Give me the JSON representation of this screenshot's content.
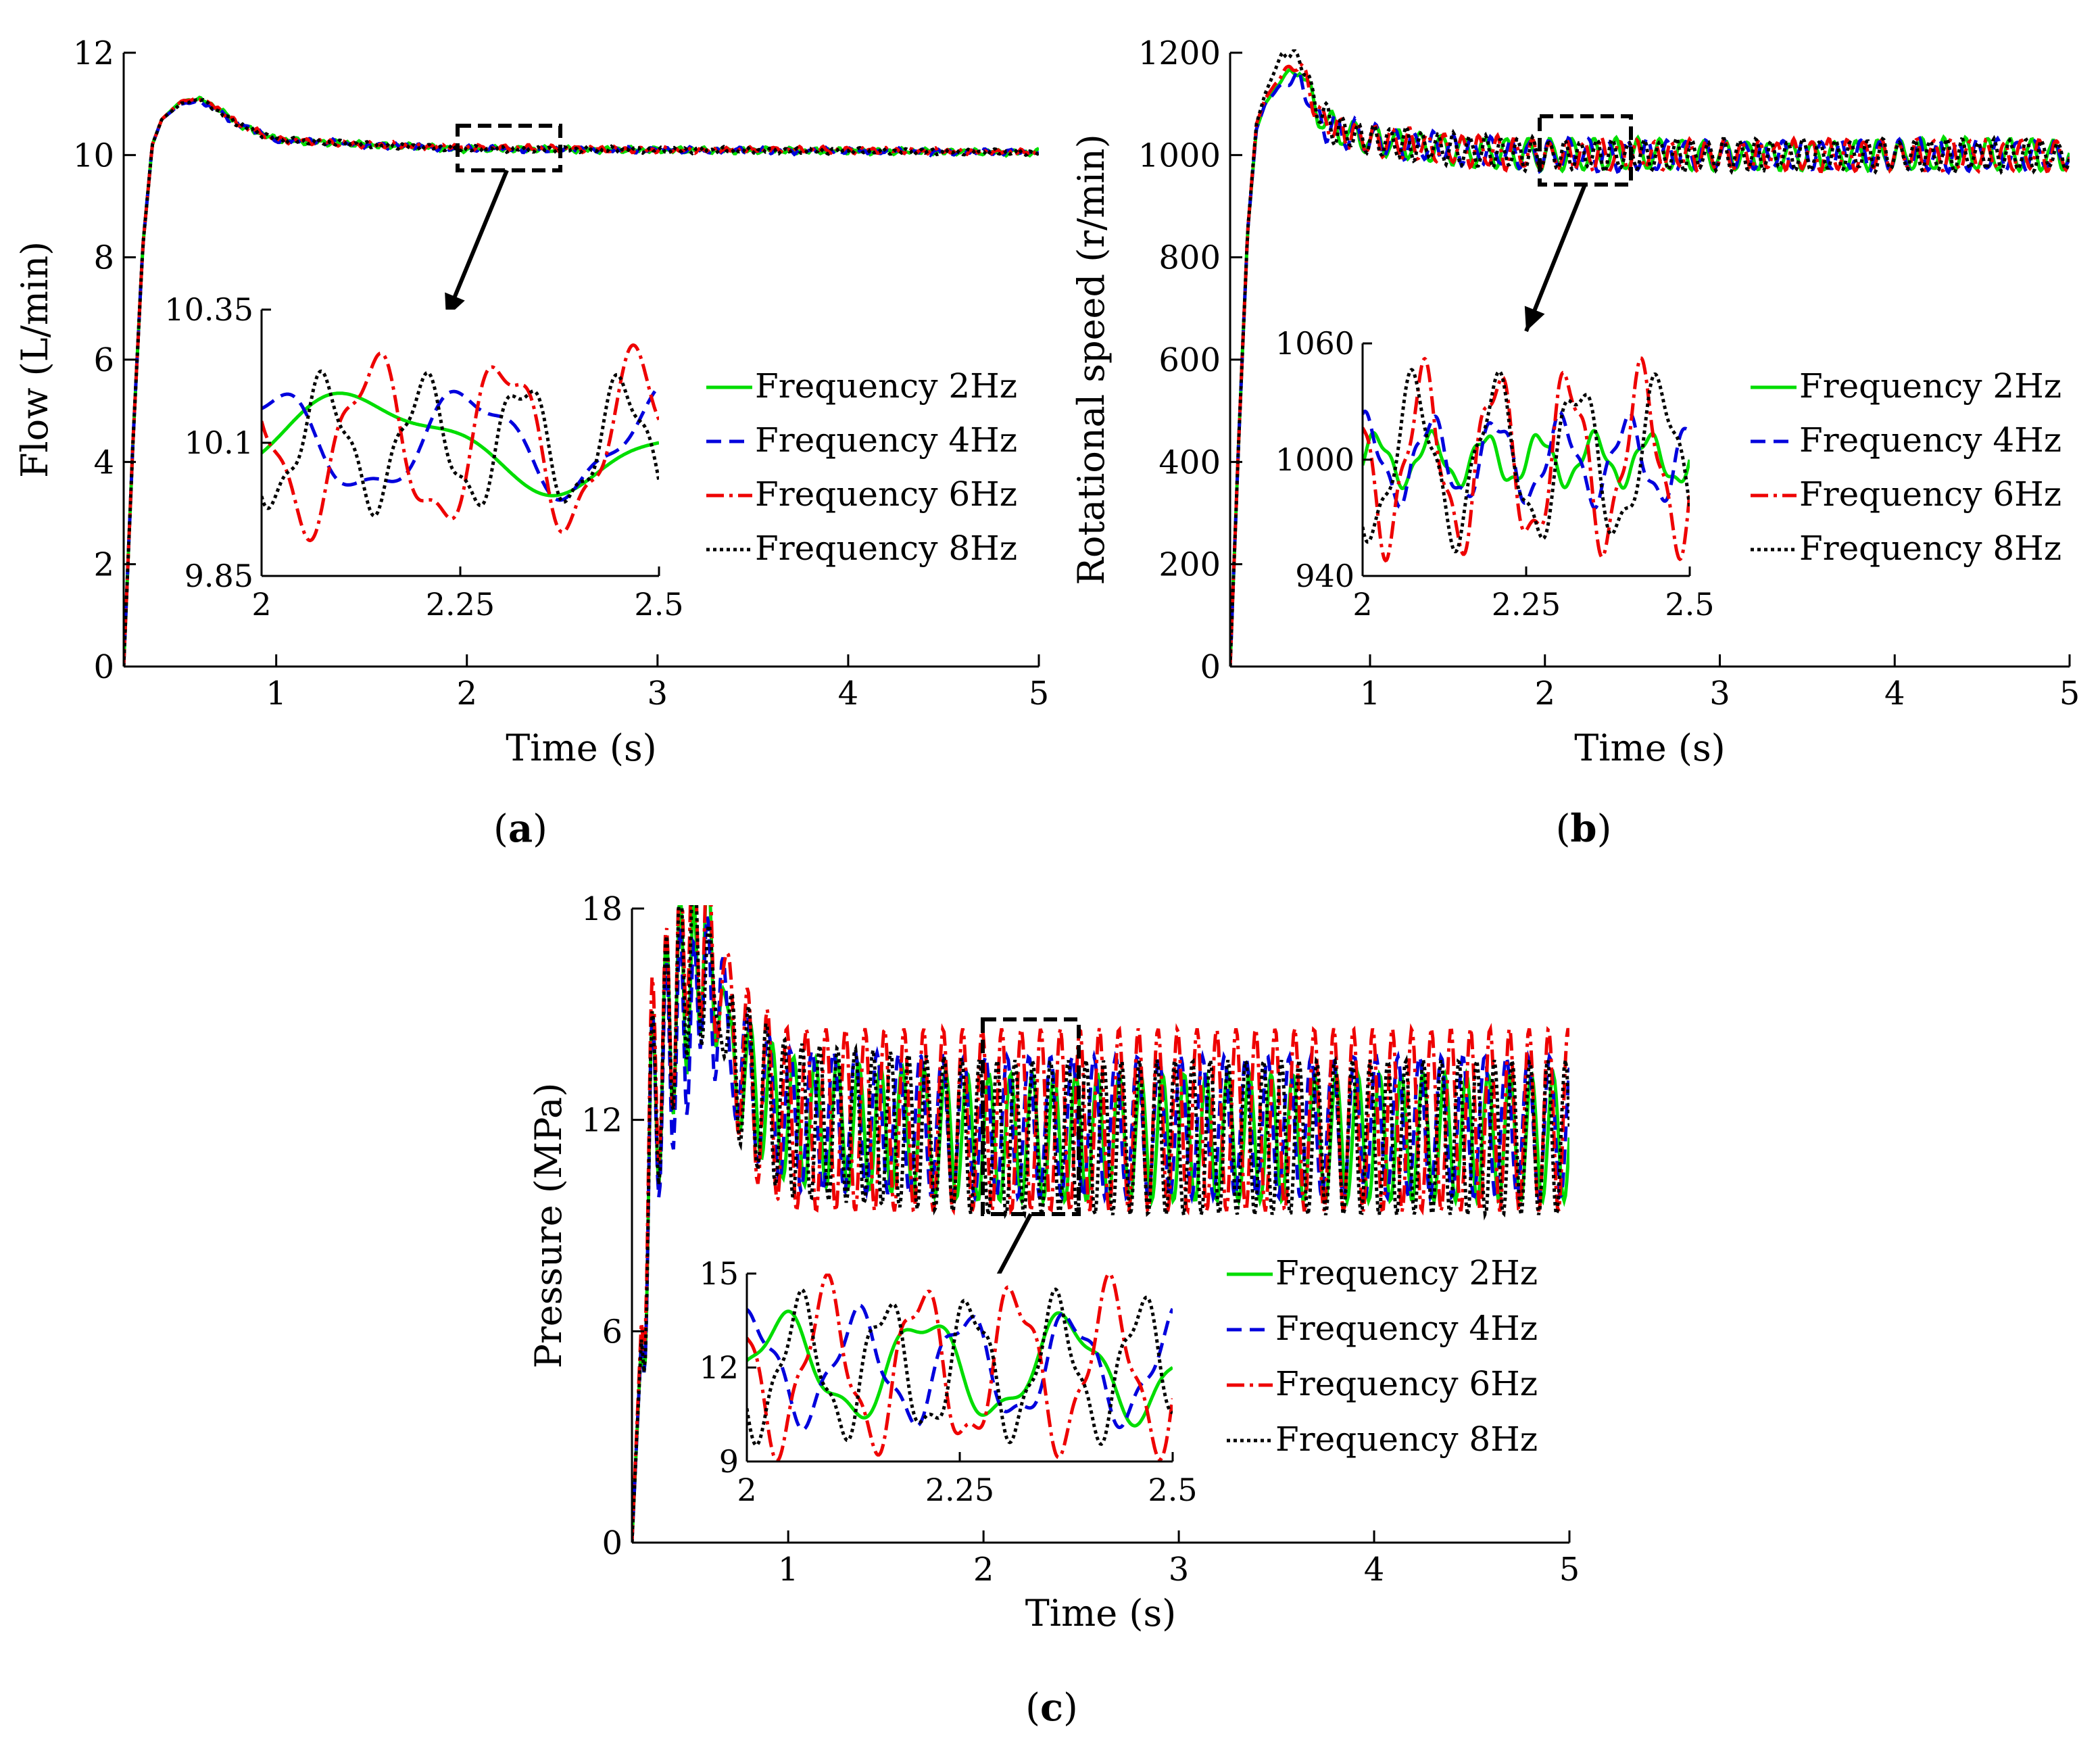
{
  "figure": {
    "panels": [
      "a",
      "b",
      "c"
    ]
  },
  "chart_data": [
    {
      "type": "line",
      "panel_label": "a",
      "xlabel": "Time (s)",
      "ylabel": "Flow (L/min)",
      "xlim": [
        0.2,
        5
      ],
      "ylim": [
        0,
        12
      ],
      "xticks": [
        "1",
        "2",
        "3",
        "4",
        "5"
      ],
      "yticks": [
        "0",
        "2",
        "4",
        "6",
        "8",
        "10",
        "12"
      ],
      "x": [
        0.2,
        0.25,
        0.3,
        0.35,
        0.4,
        0.5,
        0.6,
        0.7,
        0.8,
        1,
        1.5,
        2,
        3,
        4,
        5
      ],
      "series": [
        {
          "name": "Frequency 2Hz",
          "color": "#00dd00",
          "values": [
            0,
            4.5,
            8.2,
            10.2,
            10.7,
            11.05,
            11.1,
            10.9,
            10.6,
            10.3,
            10.2,
            10.12,
            10.1,
            10.08,
            10.05
          ]
        },
        {
          "name": "Frequency 4Hz",
          "color": "#0000dd",
          "values": [
            0,
            4.5,
            8.2,
            10.2,
            10.7,
            11.0,
            11.05,
            10.85,
            10.6,
            10.3,
            10.2,
            10.12,
            10.1,
            10.08,
            10.05
          ]
        },
        {
          "name": "Frequency 6Hz",
          "color": "#ee0000",
          "values": [
            0,
            4.5,
            8.2,
            10.2,
            10.7,
            11.05,
            11.1,
            10.9,
            10.6,
            10.3,
            10.2,
            10.15,
            10.1,
            10.1,
            10.05
          ]
        },
        {
          "name": "Frequency 8Hz",
          "color": "#000000",
          "values": [
            0,
            4.5,
            8.2,
            10.2,
            10.7,
            11.0,
            11.1,
            10.85,
            10.6,
            10.3,
            10.2,
            10.12,
            10.1,
            10.08,
            10.05
          ]
        }
      ],
      "inset": {
        "xlim": [
          2,
          2.5
        ],
        "ylim": [
          9.85,
          10.35
        ],
        "xticks": [
          "2",
          "2.25",
          "2.5"
        ],
        "yticks": [
          "9.85",
          "10.1",
          "10.35"
        ],
        "steady": 10.1,
        "series": [
          {
            "name": "Frequency 2Hz",
            "amplitude": 0.08,
            "frequency_hz": 2
          },
          {
            "name": "Frequency 4Hz",
            "amplitude": 0.09,
            "frequency_hz": 4
          },
          {
            "name": "Frequency 6Hz",
            "amplitude": 0.15,
            "frequency_hz": 6
          },
          {
            "name": "Frequency 8Hz",
            "amplitude": 0.11,
            "frequency_hz": 8
          }
        ]
      },
      "legend": [
        "Frequency 2Hz",
        "Frequency 4Hz",
        "Frequency 6Hz",
        "Frequency 8Hz"
      ]
    },
    {
      "type": "line",
      "panel_label": "b",
      "xlabel": "Time (s)",
      "ylabel": "Rotational speed (r/min)",
      "xlim": [
        0.2,
        5
      ],
      "ylim": [
        0,
        1200
      ],
      "xticks": [
        "1",
        "2",
        "3",
        "4",
        "5"
      ],
      "yticks": [
        "0",
        "200",
        "400",
        "600",
        "800",
        "1000",
        "1200"
      ],
      "x": [
        0.2,
        0.25,
        0.3,
        0.35,
        0.4,
        0.5,
        0.6,
        0.7,
        0.8,
        1,
        1.5,
        2,
        3,
        4,
        5
      ],
      "series": [
        {
          "name": "Frequency 2Hz",
          "color": "#00dd00",
          "values": [
            0,
            450,
            850,
            1050,
            1100,
            1150,
            1170,
            1080,
            1050,
            1030,
            1010,
            1000,
            1000,
            1000,
            1000
          ]
        },
        {
          "name": "Frequency 4Hz",
          "color": "#0000dd",
          "values": [
            0,
            450,
            850,
            1050,
            1100,
            1140,
            1150,
            1070,
            1050,
            1030,
            1010,
            1000,
            1000,
            1000,
            1000
          ]
        },
        {
          "name": "Frequency 6Hz",
          "color": "#ee0000",
          "values": [
            0,
            450,
            850,
            1060,
            1110,
            1160,
            1180,
            1080,
            1050,
            1030,
            1010,
            1000,
            1000,
            1000,
            1000
          ]
        },
        {
          "name": "Frequency 8Hz",
          "color": "#000000",
          "values": [
            0,
            450,
            850,
            1060,
            1120,
            1200,
            1190,
            1090,
            1050,
            1030,
            1010,
            1000,
            1000,
            1000,
            1000
          ]
        }
      ],
      "inset": {
        "xlim": [
          2,
          2.5
        ],
        "ylim": [
          940,
          1060
        ],
        "xticks": [
          "2",
          "2.25",
          "2.5"
        ],
        "yticks": [
          "940",
          "1000",
          "1060"
        ],
        "steady": 1000,
        "series": [
          {
            "name": "Frequency 2Hz",
            "amplitude": 12,
            "frequency_hz": 12
          },
          {
            "name": "Frequency 4Hz",
            "amplitude": 20,
            "frequency_hz": 10
          },
          {
            "name": "Frequency 6Hz",
            "amplitude": 42,
            "frequency_hz": 9
          },
          {
            "name": "Frequency 8Hz",
            "amplitude": 38,
            "frequency_hz": 8
          }
        ]
      },
      "legend": [
        "Frequency 2Hz",
        "Frequency 4Hz",
        "Frequency 6Hz",
        "Frequency 8Hz"
      ]
    },
    {
      "type": "line",
      "panel_label": "c",
      "xlabel": "Time (s)",
      "ylabel": "Pressure (MPa)",
      "xlim": [
        0.2,
        5
      ],
      "ylim": [
        0,
        18
      ],
      "xticks": [
        "1",
        "2",
        "3",
        "4",
        "5"
      ],
      "yticks": [
        "0",
        "6",
        "12",
        "18"
      ],
      "x": [
        0.2,
        0.3,
        0.4,
        0.5,
        0.6,
        0.7,
        0.8,
        1,
        2,
        3,
        4,
        5
      ],
      "series": [
        {
          "name": "Frequency 2Hz",
          "color": "#00dd00",
          "values": [
            0,
            12,
            15,
            16,
            17,
            14,
            13,
            12,
            11.5,
            11.5,
            11.5,
            11.5
          ]
        },
        {
          "name": "Frequency 4Hz",
          "color": "#0000dd",
          "values": [
            0,
            12,
            14,
            15,
            16,
            14,
            13,
            12,
            11.8,
            11.8,
            11.8,
            11.8
          ]
        },
        {
          "name": "Frequency 6Hz",
          "color": "#ee0000",
          "values": [
            0,
            13,
            15,
            18,
            17,
            15,
            13,
            12,
            12,
            12,
            12,
            12
          ]
        },
        {
          "name": "Frequency 8Hz",
          "color": "#000000",
          "values": [
            0,
            12,
            15,
            17,
            16,
            14,
            13,
            12,
            11.5,
            11.5,
            11.5,
            11.5
          ]
        }
      ],
      "main_oscillation": [
        {
          "name": "Frequency 2Hz",
          "amplitude": 1.8,
          "frequency_hz": 9
        },
        {
          "name": "Frequency 4Hz",
          "amplitude": 2.0,
          "frequency_hz": 9
        },
        {
          "name": "Frequency 6Hz",
          "amplitude": 2.6,
          "frequency_hz": 10
        },
        {
          "name": "Frequency 8Hz",
          "amplitude": 2.2,
          "frequency_hz": 11
        }
      ],
      "inset": {
        "xlim": [
          2,
          2.5
        ],
        "ylim": [
          9,
          15
        ],
        "xticks": [
          "2",
          "2.25",
          "2.5"
        ],
        "yticks": [
          "9",
          "12",
          "15"
        ],
        "steady": 12,
        "series": [
          {
            "name": "Frequency 2Hz",
            "amplitude": 1.5,
            "frequency_hz": 6
          },
          {
            "name": "Frequency 4Hz",
            "amplitude": 1.6,
            "frequency_hz": 8
          },
          {
            "name": "Frequency 6Hz",
            "amplitude": 2.4,
            "frequency_hz": 9
          },
          {
            "name": "Frequency 8Hz",
            "amplitude": 2.0,
            "frequency_hz": 10
          }
        ]
      },
      "legend": [
        "Frequency 2Hz",
        "Frequency 4Hz",
        "Frequency 6Hz",
        "Frequency 8Hz"
      ]
    }
  ]
}
